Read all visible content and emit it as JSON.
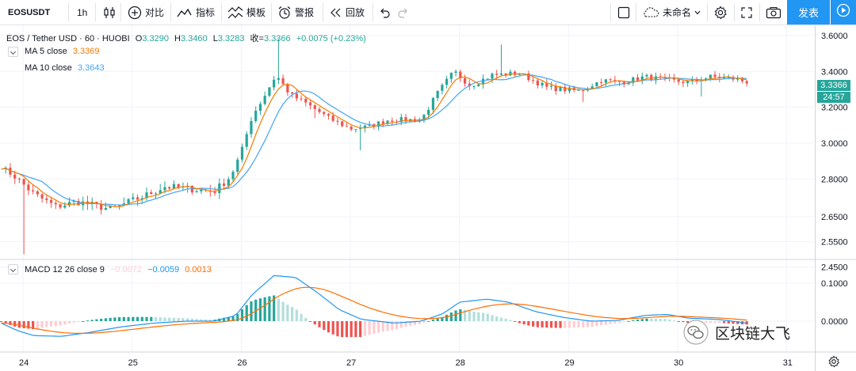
{
  "toolbar": {
    "symbol": "EOSUSDT",
    "interval": "1h",
    "compare_label": "对比",
    "indicators_label": "指标",
    "templates_label": "模板",
    "alert_label": "警报",
    "replay_label": "回放",
    "layout_name": "未命名",
    "publish_label": "发表"
  },
  "legend": {
    "title": "EOS / Tether USD · 60 · HUOBI",
    "o_label": "O",
    "o_value": "3.3290",
    "h_label": "H",
    "h_value": "3.3460",
    "l_label": "L",
    "l_value": "3.3283",
    "c_label": "收=",
    "c_value": "3.3366",
    "change": "+0.0075 (+0.23%)",
    "ma5_label": "MA  5 close",
    "ma5_value": "3.3369",
    "ma10_label": "MA  10 close",
    "ma10_value": "3.3643",
    "macd_label": "MACD 12 26 close 9",
    "macd_hist": "−0.0072",
    "macd_value": "−0.0059",
    "macd_signal": "0.0013"
  },
  "price_axis": {
    "ticks": [
      "3.6000",
      "3.4000",
      "3.2000",
      "3.0000",
      "2.8000",
      "2.6500",
      "2.5500",
      "2.4500"
    ],
    "last_price": "3.3366",
    "countdown": "24:57"
  },
  "macd_axis": {
    "ticks": [
      "0.1000",
      "0.0000"
    ]
  },
  "time_axis": {
    "ticks": [
      "24",
      "25",
      "26",
      "27",
      "28",
      "29",
      "30",
      "31"
    ]
  },
  "watermark": {
    "text": "区块链大飞"
  },
  "colors": {
    "up": "#26a69a",
    "down": "#ef5350",
    "ma5": "#f57c00",
    "ma10": "#42a5f5",
    "macd": "#2196f3",
    "signal": "#ff6d00",
    "accent": "#2196f3",
    "grid": "#f0f3fa",
    "hist_up_strong": "#26a69a",
    "hist_up_weak": "#b2dfdb",
    "hist_down_strong": "#ef5350",
    "hist_down_weak": "#ffcdd2"
  },
  "chart_data": {
    "type": "candlestick",
    "title": "EOS / Tether USD · 60 · HUOBI",
    "price_ticks": [
      3.6,
      3.4,
      3.2,
      3.0,
      2.8,
      2.65,
      2.55,
      2.45
    ],
    "macd_ticks": [
      0.1,
      0.0
    ],
    "days": [
      "24",
      "25",
      "26",
      "27",
      "28",
      "29",
      "30",
      "31"
    ],
    "close_anchors": [
      [
        23.8,
        2.87
      ],
      [
        23.95,
        2.8
      ],
      [
        24.1,
        2.74
      ],
      [
        24.3,
        2.69
      ],
      [
        24.5,
        2.71
      ],
      [
        24.8,
        2.68
      ],
      [
        25.1,
        2.73
      ],
      [
        25.3,
        2.77
      ],
      [
        25.55,
        2.76
      ],
      [
        25.75,
        2.75
      ],
      [
        25.9,
        2.81
      ],
      [
        26.0,
        2.95
      ],
      [
        26.1,
        3.15
      ],
      [
        26.2,
        3.25
      ],
      [
        26.32,
        3.38
      ],
      [
        26.45,
        3.27
      ],
      [
        26.6,
        3.22
      ],
      [
        26.8,
        3.14
      ],
      [
        27.0,
        3.08
      ],
      [
        27.15,
        3.09
      ],
      [
        27.35,
        3.13
      ],
      [
        27.65,
        3.13
      ],
      [
        27.8,
        3.28
      ],
      [
        27.95,
        3.4
      ],
      [
        28.1,
        3.32
      ],
      [
        28.3,
        3.38
      ],
      [
        28.55,
        3.39
      ],
      [
        28.8,
        3.31
      ],
      [
        29.1,
        3.29
      ],
      [
        29.3,
        3.35
      ],
      [
        29.5,
        3.34
      ],
      [
        29.7,
        3.37
      ],
      [
        29.9,
        3.35
      ],
      [
        30.1,
        3.34
      ],
      [
        30.3,
        3.37
      ],
      [
        30.5,
        3.36
      ],
      [
        30.65,
        3.34
      ]
    ],
    "spikes": [
      [
        24.0,
        2.5
      ],
      [
        26.33,
        3.58
      ],
      [
        26.67,
        3.14
      ],
      [
        27.1,
        2.96
      ],
      [
        28.4,
        3.55
      ],
      [
        29.15,
        3.23
      ],
      [
        30.2,
        3.26
      ]
    ],
    "macd_anchors": [
      [
        23.8,
        -0.005
      ],
      [
        23.95,
        -0.025
      ],
      [
        24.1,
        -0.038
      ],
      [
        24.35,
        -0.04
      ],
      [
        24.6,
        -0.03
      ],
      [
        24.9,
        -0.015
      ],
      [
        25.2,
        -0.005
      ],
      [
        25.5,
        0.0
      ],
      [
        25.75,
        0.0
      ],
      [
        25.95,
        0.015
      ],
      [
        26.1,
        0.07
      ],
      [
        26.3,
        0.12
      ],
      [
        26.5,
        0.115
      ],
      [
        26.7,
        0.075
      ],
      [
        26.9,
        0.03
      ],
      [
        27.1,
        0.005
      ],
      [
        27.4,
        -0.005
      ],
      [
        27.65,
        0.0
      ],
      [
        27.85,
        0.02
      ],
      [
        28.0,
        0.05
      ],
      [
        28.25,
        0.058
      ],
      [
        28.45,
        0.05
      ],
      [
        28.7,
        0.025
      ],
      [
        28.95,
        0.01
      ],
      [
        29.2,
        0.0
      ],
      [
        29.45,
        0.002
      ],
      [
        29.7,
        0.015
      ],
      [
        29.9,
        0.018
      ],
      [
        30.1,
        0.008
      ],
      [
        30.4,
        0.004
      ],
      [
        30.65,
        -0.006
      ]
    ]
  }
}
